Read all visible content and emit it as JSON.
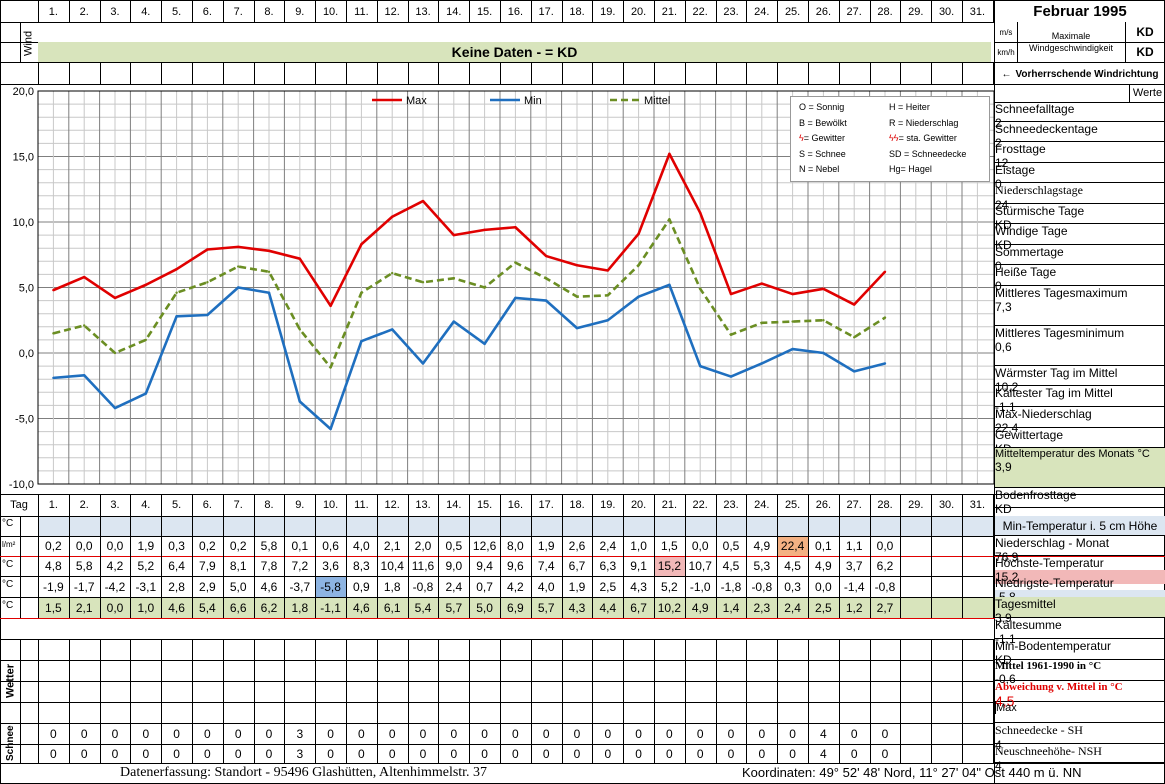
{
  "title": "Februar 1995",
  "days": [
    "1.",
    "2.",
    "3.",
    "4.",
    "5.",
    "6.",
    "7.",
    "8.",
    "9.",
    "10.",
    "11.",
    "12.",
    "13.",
    "14.",
    "15.",
    "16.",
    "17.",
    "18.",
    "19.",
    "20.",
    "21.",
    "22.",
    "23.",
    "24.",
    "25.",
    "26.",
    "27.",
    "28.",
    "29.",
    "30.",
    "31."
  ],
  "wind": {
    "label": "Wind",
    "unit_ms": "m/s",
    "unit_kmh": "km/h",
    "max_label": "Maximale Windgeschwindigkeit",
    "max_ms": "KD",
    "max_kmh": "KD",
    "no_data": "Keine Daten -  = KD",
    "direction_label": "Vorherrschende Windrichtung",
    "arrow": "←"
  },
  "chart_data": {
    "type": "line",
    "x": [
      1,
      2,
      3,
      4,
      5,
      6,
      7,
      8,
      9,
      10,
      11,
      12,
      13,
      14,
      15,
      16,
      17,
      18,
      19,
      20,
      21,
      22,
      23,
      24,
      25,
      26,
      27,
      28
    ],
    "ylim": [
      -10,
      20
    ],
    "yticks": [
      "20,0",
      "15,0",
      "10,0",
      "5,0",
      "0,0",
      "-5,0",
      "-10,0"
    ],
    "series": [
      {
        "name": "Max",
        "color": "#e00000",
        "dash": false,
        "values": [
          4.8,
          5.8,
          4.2,
          5.2,
          6.4,
          7.9,
          8.1,
          7.8,
          7.2,
          3.6,
          8.3,
          10.4,
          11.6,
          9.0,
          9.4,
          9.6,
          7.4,
          6.7,
          6.3,
          9.1,
          15.2,
          10.7,
          4.5,
          5.3,
          4.5,
          4.9,
          3.7,
          6.2
        ]
      },
      {
        "name": "Min",
        "color": "#1f6fbf",
        "dash": false,
        "values": [
          -1.9,
          -1.7,
          -4.2,
          -3.1,
          2.8,
          2.9,
          5.0,
          4.6,
          -3.7,
          -5.8,
          0.9,
          1.8,
          -0.8,
          2.4,
          0.7,
          4.2,
          4.0,
          1.9,
          2.5,
          4.3,
          5.2,
          -1.0,
          -1.8,
          -0.8,
          0.3,
          0.0,
          -1.4,
          -0.8
        ]
      },
      {
        "name": "Mittel",
        "color": "#6b8e23",
        "dash": true,
        "values": [
          1.5,
          2.1,
          0.0,
          1.0,
          4.6,
          5.4,
          6.6,
          6.2,
          1.8,
          -1.1,
          4.6,
          6.1,
          5.4,
          5.7,
          5.0,
          6.9,
          5.7,
          4.3,
          4.4,
          6.7,
          10.2,
          4.9,
          1.4,
          2.3,
          2.4,
          2.5,
          1.2,
          2.7
        ]
      }
    ]
  },
  "legend_box": [
    [
      "O = Sonnig",
      "H = Heiter"
    ],
    [
      "B = Bewölkt",
      "R = Niederschlag"
    ],
    [
      "= Gewitter",
      "= sta. Gewitter"
    ],
    [
      "S = Schnee",
      "SD = Schneedecke"
    ],
    [
      "N = Nebel",
      "Hg= Hagel"
    ]
  ],
  "rows": {
    "tag_label": "Tag",
    "unit_c": "°C",
    "unit_precip": "l/m²",
    "precip": [
      "0,2",
      "0,0",
      "0,0",
      "1,9",
      "0,3",
      "0,2",
      "0,2",
      "5,8",
      "0,1",
      "0,6",
      "4,0",
      "2,1",
      "2,0",
      "0,5",
      "12,6",
      "8,0",
      "1,9",
      "2,6",
      "2,4",
      "1,0",
      "1,5",
      "0,0",
      "0,5",
      "4,9",
      "22,4",
      "0,1",
      "1,1",
      "0,0"
    ],
    "max": [
      "4,8",
      "5,8",
      "4,2",
      "5,2",
      "6,4",
      "7,9",
      "8,1",
      "7,8",
      "7,2",
      "3,6",
      "8,3",
      "10,4",
      "11,6",
      "9,0",
      "9,4",
      "9,6",
      "7,4",
      "6,7",
      "6,3",
      "9,1",
      "15,2",
      "10,7",
      "4,5",
      "5,3",
      "4,5",
      "4,9",
      "3,7",
      "6,2"
    ],
    "min": [
      "-1,9",
      "-1,7",
      "-4,2",
      "-3,1",
      "2,8",
      "2,9",
      "5,0",
      "4,6",
      "-3,7",
      "-5,8",
      "0,9",
      "1,8",
      "-0,8",
      "2,4",
      "0,7",
      "4,2",
      "4,0",
      "1,9",
      "2,5",
      "4,3",
      "5,2",
      "-1,0",
      "-1,8",
      "-0,8",
      "0,3",
      "0,0",
      "-1,4",
      "-0,8"
    ],
    "mean": [
      "1,5",
      "2,1",
      "0,0",
      "1,0",
      "4,6",
      "5,4",
      "6,6",
      "6,2",
      "1,8",
      "-1,1",
      "4,6",
      "6,1",
      "5,4",
      "5,7",
      "5,0",
      "6,9",
      "5,7",
      "4,3",
      "4,4",
      "6,7",
      "10,2",
      "4,9",
      "1,4",
      "2,3",
      "2,4",
      "2,5",
      "1,2",
      "2,7"
    ],
    "wetter_label": "Wetter",
    "schnee_label": "Schnee",
    "snow_sh": [
      "0",
      "0",
      "0",
      "0",
      "0",
      "0",
      "0",
      "0",
      "3",
      "0",
      "0",
      "0",
      "0",
      "0",
      "0",
      "0",
      "0",
      "0",
      "0",
      "0",
      "0",
      "0",
      "0",
      "0",
      "0",
      "4",
      "0",
      "0"
    ],
    "snow_nsh": [
      "0",
      "0",
      "0",
      "0",
      "0",
      "0",
      "0",
      "0",
      "3",
      "0",
      "0",
      "0",
      "0",
      "0",
      "0",
      "0",
      "0",
      "0",
      "0",
      "0",
      "0",
      "0",
      "0",
      "0",
      "0",
      "4",
      "0",
      "0"
    ],
    "highlight_colors": {
      "precip_max": "#f4b183",
      "temp_max": "#f2b8b8",
      "temp_min": "#8db4e2"
    }
  },
  "stats": {
    "werte": "Werte",
    "items": [
      {
        "label": "Schneefalltage",
        "value": "2"
      },
      {
        "label": "Schneedeckentage",
        "value": "2"
      },
      {
        "label": "Frosttage",
        "value": "12"
      },
      {
        "label": "Eistage",
        "value": "0"
      },
      {
        "label": "Niederschlagstage",
        "value": "24"
      },
      {
        "label": "Stürmische Tage",
        "value": "KD"
      },
      {
        "label": "Windige Tage",
        "value": "KD"
      },
      {
        "label": "Sommertage",
        "value": "0"
      },
      {
        "label": "Heiße Tage",
        "value": "0"
      },
      {
        "label": "Mittleres Tagesmaximum",
        "value": "7,3"
      },
      {
        "label": "Mittleres Tagesminimum",
        "value": "0,6"
      },
      {
        "label": "Wärmster Tag im Mittel",
        "value": "10,2"
      },
      {
        "label": "Kältester Tag im Mittel",
        "value": "-1,1"
      },
      {
        "label": "Max-Niederschlag",
        "value": "22,4"
      },
      {
        "label": "Gewittertage",
        "value": "KD"
      },
      {
        "label": "Mitteltemperatur des Monats °C",
        "value": "3,9"
      },
      {
        "label": "Bodenfrosttage",
        "value": "KD"
      }
    ],
    "min_temp_5cm": "Min-Temperatur i. 5 cm Höhe",
    "bottom": [
      {
        "label": "Niederschlag - Monat",
        "value": "76,9"
      },
      {
        "label": "Höchste-Temperatur",
        "value": "15,2"
      },
      {
        "label": "Niedrigste-Temperatur",
        "value": "-5,8"
      },
      {
        "label": "Tagesmittel",
        "value": "3,9"
      },
      {
        "label": "Kältesumme",
        "value": "-1,1"
      },
      {
        "label": "Min-Bodentemperatur",
        "value": "KD"
      },
      {
        "label": "Mittel 1961-1990 in °C",
        "value": "-0,6"
      },
      {
        "label": "Abweichung v. Mittel in °C",
        "value": "4,5"
      }
    ],
    "max_label": "Max",
    "snow": [
      {
        "label": "Schneedecke -   SH",
        "value": "4"
      },
      {
        "label": "Neuschneehöhe- NSH",
        "value": "4"
      }
    ]
  },
  "footer": {
    "left": "Datenerfassung:  Standort -   95496  Glashütten, Altenhimmelstr. 37",
    "right": "Koordinaten:  49° 52' 48' Nord,  11° 27' 04\" Ost   440 m ü. NN"
  }
}
